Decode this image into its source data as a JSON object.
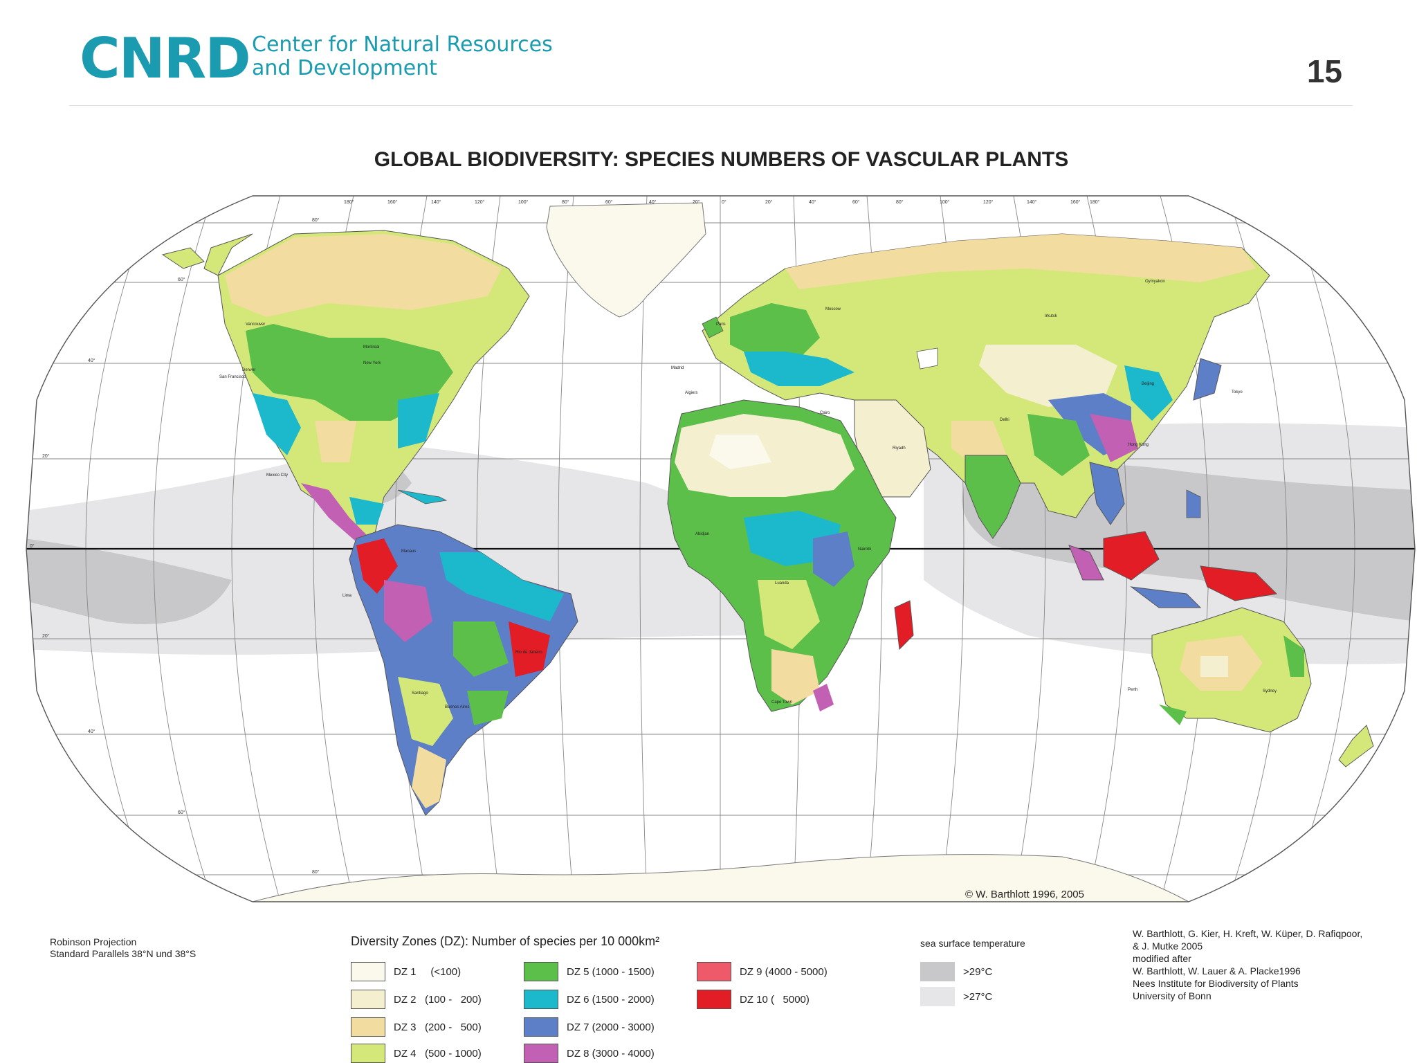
{
  "header": {
    "logo_text": "CNRD",
    "org_line1": "Center for Natural Resources",
    "org_line2": "and Development",
    "page_number": "15"
  },
  "map": {
    "title": "GLOBAL BIODIVERSITY:  SPECIES NUMBERS OF VASCULAR PLANTS",
    "copyright": "© W. Barthlott 1996, 2005",
    "projection_line1": "Robinson Projection",
    "projection_line2": "Standard Parallels 38°N und 38°S",
    "cities": [
      "Vancouver",
      "Montreal",
      "New York",
      "Denver",
      "San Francisco",
      "Mexico City",
      "Manaus",
      "Lima",
      "Rio de Janeiro",
      "Santiago",
      "Buenos Aires",
      "Algiers",
      "Madrid",
      "Paris",
      "Moscow",
      "Cairo",
      "Riyadh",
      "Abidjan",
      "Nairobi",
      "Luanda",
      "Cape Town",
      "Delhi",
      "Beijing",
      "Tokyo",
      "Hong Kong",
      "Irkutsk",
      "Oymyakon",
      "Perth",
      "Sydney"
    ],
    "longitude_labels": [
      "180°",
      "160°",
      "140°",
      "120°",
      "100°",
      "80°",
      "60°",
      "40°",
      "20°",
      "0°",
      "20°",
      "40°",
      "60°",
      "80°",
      "100°",
      "120°",
      "140°",
      "160°",
      "180°"
    ],
    "latitude_labels": [
      "80°",
      "60°",
      "40°",
      "20°",
      "0°",
      "20°",
      "40°",
      "60°",
      "80°"
    ]
  },
  "legend": {
    "title": "Diversity Zones (DZ): Number of species per 10 000km²",
    "zones": [
      {
        "label": "DZ 1     (<100)",
        "color": "#fbf9ec"
      },
      {
        "label": "DZ 2   (100 -   200)",
        "color": "#f4efcf"
      },
      {
        "label": "DZ 3   (200 -   500)",
        "color": "#f2dca0"
      },
      {
        "label": "DZ 4   (500 - 1000)",
        "color": "#d4e87a"
      },
      {
        "label": "DZ 5 (1000 - 1500)",
        "color": "#5cbf4a"
      },
      {
        "label": "DZ 6 (1500 - 2000)",
        "color": "#1cb8cc"
      },
      {
        "label": "DZ 7 (2000 - 3000)",
        "color": "#5d7fc7"
      },
      {
        "label": "DZ 8 (3000 - 4000)",
        "color": "#c260b4"
      },
      {
        "label": "DZ 9 (4000 - 5000)",
        "color": "#ef5a6b"
      },
      {
        "label": "DZ 10 (   5000)",
        "color": "#e21d25"
      }
    ],
    "sst_title": "sea surface temperature",
    "sst": [
      {
        "label": ">29°C",
        "color": "#c8c8ca"
      },
      {
        "label": ">27°C",
        "color": "#e6e6e8"
      }
    ]
  },
  "credits": [
    "W. Barthlott, G. Kier, H. Kreft, W. Küper, D. Rafiqpoor,",
    "& J. Mutke 2005",
    "modified after",
    "W. Barthlott, W. Lauer & A. Placke1996",
    "Nees Institute for Biodiversity of Plants",
    "University of Bonn"
  ]
}
